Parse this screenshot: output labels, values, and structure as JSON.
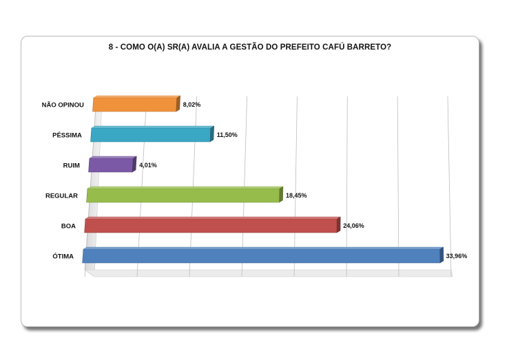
{
  "chart_data": {
    "type": "bar",
    "orientation": "horizontal",
    "title": "8 - COMO O(A) SR(A) AVALIA A GESTÃO DO PREFEITO CAFÚ BARRETO?",
    "categories": [
      "NÃO OPINOU",
      "PÉSSIMA",
      "RUIM",
      "REGULAR",
      "BOA",
      "ÓTIMA"
    ],
    "values": [
      8.02,
      11.5,
      4.01,
      18.45,
      24.06,
      33.96
    ],
    "value_labels": [
      "8,02%",
      "11,50%",
      "4,01%",
      "18,45%",
      "24,06%",
      "33,96%"
    ],
    "colors": [
      "#f0923c",
      "#3aa7c4",
      "#7b59a6",
      "#96bc4b",
      "#c0504d",
      "#4f81bd"
    ],
    "xlim": [
      0,
      35
    ],
    "grid": true,
    "style": "3d-perspective"
  }
}
